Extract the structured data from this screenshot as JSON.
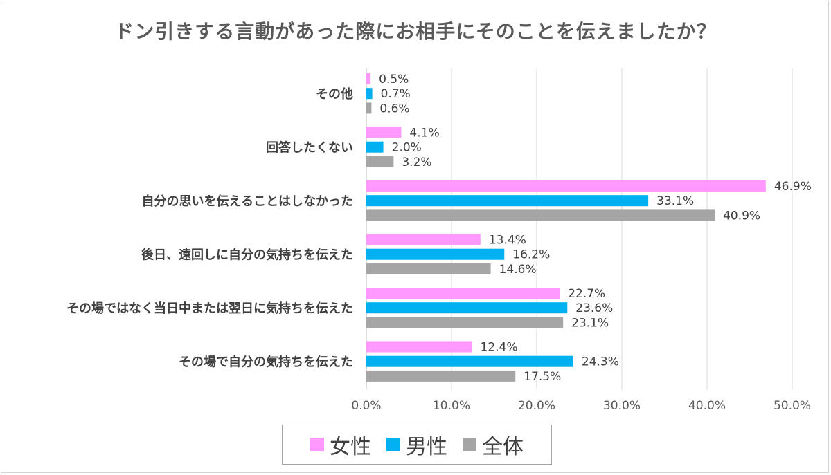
{
  "chart_data": {
    "type": "bar",
    "orientation": "horizontal",
    "title": "ドン引きする言動があった際にお相手にそのことを伝えましたか？",
    "categories": [
      "その他",
      "回答したくない",
      "自分の思いを伝えることはしなかった",
      "後日、遠回しに自分の気持ちを伝えた",
      "その場ではなく当日中または翌日に気持ちを伝えた",
      "その場で自分の気持ちを伝えた"
    ],
    "series": [
      {
        "name": "女性",
        "color": "#ff99ff",
        "values": [
          0.5,
          4.1,
          46.9,
          13.4,
          22.7,
          12.4
        ]
      },
      {
        "name": "男性",
        "color": "#00b0f0",
        "values": [
          0.7,
          2.0,
          33.1,
          16.2,
          23.6,
          24.3
        ]
      },
      {
        "name": "全体",
        "color": "#a5a5a5",
        "values": [
          0.6,
          3.2,
          40.9,
          14.6,
          23.1,
          17.5
        ]
      }
    ],
    "xlim": [
      0,
      50
    ],
    "xticks": [
      "0.0%",
      "10.0%",
      "20.0%",
      "30.0%",
      "40.0%",
      "50.0%"
    ],
    "value_format": "percent_1dp",
    "grid": true,
    "legend_position": "bottom"
  }
}
